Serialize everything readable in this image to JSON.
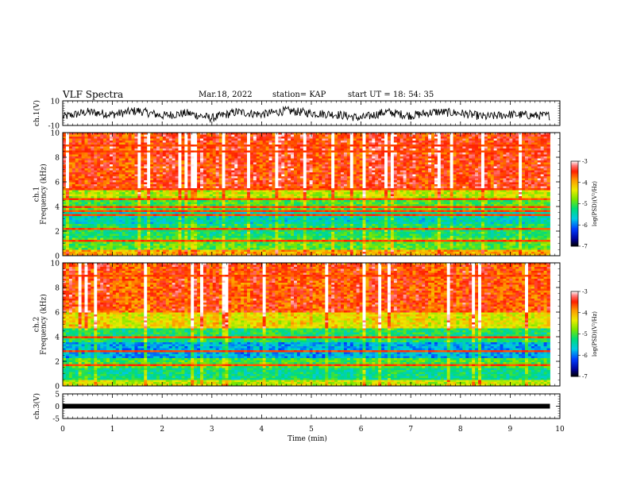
{
  "header": {
    "title": "VLF Spectra",
    "date": "Mar.18, 2022",
    "station": "station= KAP",
    "start": "start  UT =   18: 54: 35"
  },
  "chart_data": [
    {
      "type": "line",
      "ylabel": "ch.1(V)",
      "ylim": [
        -10,
        10
      ],
      "yticks": [
        "10",
        "-10"
      ],
      "xlim": [
        0,
        10
      ],
      "note_series": "noisy waveform fluctuating roughly between -6 and 4 V",
      "x": [
        0,
        0.5,
        1,
        1.5,
        2,
        2.5,
        3,
        3.5,
        4,
        4.5,
        5,
        5.5,
        6,
        6.5,
        7,
        7.5,
        8,
        8.5,
        9,
        9.5,
        9.8
      ],
      "y": [
        -3,
        1,
        -1,
        2,
        -2,
        0,
        -4,
        1,
        -1,
        2,
        0,
        -1,
        -4,
        1,
        -2,
        1,
        0,
        -3,
        -1,
        -2,
        -2
      ]
    },
    {
      "type": "heatmap",
      "ylabel": "ch.1\nFrequency  (kHz)",
      "ylim": [
        0,
        10
      ],
      "yticks": [
        "0",
        "2",
        "4",
        "6",
        "8",
        "10"
      ],
      "xlim": [
        0,
        9.8
      ],
      "colorbar": {
        "label": "log(PSD)(V²/Hz)",
        "ticks": [
          "-3",
          "-4",
          "-5",
          "-6",
          "-7"
        ],
        "range": [
          -7,
          -3
        ]
      },
      "freq_profile_log_psd": [
        {
          "band": "0-0.5",
          "value": -4
        },
        {
          "band": "0.5-1.5",
          "value": -4.9
        },
        {
          "band": "1.5-2.5",
          "value": -5.2
        },
        {
          "band": "2.5-3.6",
          "value": -5.5
        },
        {
          "band": "3.6-4.5",
          "value": -5.0
        },
        {
          "band": "4.5-5.5",
          "value": -4.5
        },
        {
          "band": "5.5-10",
          "value": -3.5
        }
      ]
    },
    {
      "type": "heatmap",
      "ylabel": "ch.2\nFrequency  (kHz)",
      "ylim": [
        0,
        10
      ],
      "yticks": [
        "0",
        "2",
        "4",
        "6",
        "8",
        "10"
      ],
      "xlim": [
        0,
        9.8
      ],
      "colorbar": {
        "label": "log(PSD)(V²/Hz)",
        "ticks": [
          "-3",
          "-4",
          "-5",
          "-6",
          "-7"
        ],
        "range": [
          -7,
          -3
        ]
      },
      "freq_profile_log_psd": [
        {
          "band": "0-0.5",
          "value": -4.5
        },
        {
          "band": "0.5-1.5",
          "value": -5.3
        },
        {
          "band": "1.5-2.2",
          "value": -5.0
        },
        {
          "band": "2.2-3.5",
          "value": -5.8
        },
        {
          "band": "3.5-4.6",
          "value": -5.2
        },
        {
          "band": "4.6-6",
          "value": -4.3
        },
        {
          "band": "6-10",
          "value": -3.6
        }
      ]
    },
    {
      "type": "line",
      "ylabel": "ch.3(V)",
      "ylim": [
        -5,
        5
      ],
      "yticks": [
        "5",
        "0",
        "-5"
      ],
      "xlim": [
        0,
        10
      ],
      "x": [
        0,
        9.8
      ],
      "y": [
        0,
        0
      ]
    }
  ],
  "xaxis": {
    "label": "Time  (min)",
    "ticks": [
      "0",
      "1",
      "2",
      "3",
      "4",
      "5",
      "6",
      "7",
      "8",
      "9",
      "10"
    ]
  }
}
